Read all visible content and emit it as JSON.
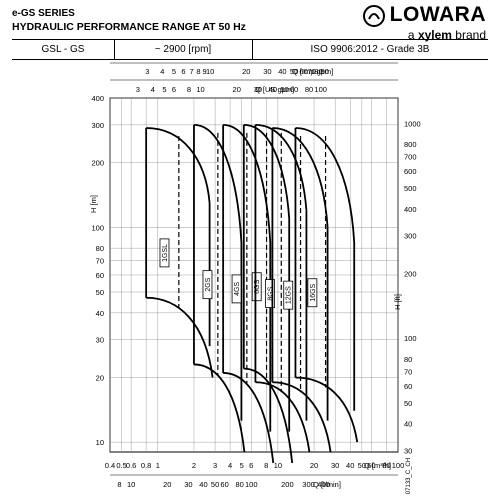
{
  "header": {
    "series": "e-GS SERIES",
    "title": "HYDRAULIC PERFORMANCE RANGE AT 50 Hz",
    "logo": "LOWARA",
    "brand_prefix": "a ",
    "brand_strong": "xylem",
    "brand_suffix": " brand"
  },
  "info": {
    "models": "GSL - GS",
    "speed": "~ 2900 [rpm]",
    "standard": "ISO 9906:2012 - Grade 3B"
  },
  "chart_data": {
    "type": "line",
    "title": "",
    "xscale": "log",
    "yscale": "log",
    "xlabel": "Q [m³/h]",
    "ylabel": "H [m]",
    "xlim": [
      0.4,
      100
    ],
    "ylim": [
      9,
      400
    ],
    "y2label": "H [ft]",
    "x2label_top1": "Q [Imp gpm]",
    "x2label_top2": "Q [US gpm]",
    "x2label_bottom": "Q [l/min]",
    "xticks": [
      "0.4",
      "0.5",
      "0.6",
      "0.8",
      "1",
      "2",
      "3",
      "4",
      "5",
      "6",
      "8",
      "10",
      "20",
      "30",
      "40",
      "50",
      "60",
      "80",
      "100"
    ],
    "yticks": [
      "10",
      "20",
      "30",
      "40",
      "50",
      "60",
      "70",
      "80",
      "100",
      "200",
      "300",
      "400"
    ],
    "y2ticks": [
      "30",
      "40",
      "50",
      "60",
      "70",
      "80",
      "100",
      "200",
      "300",
      "400",
      "500",
      "600",
      "700",
      "800",
      "1000"
    ],
    "imp_gpm_ticks": [
      "3",
      "4",
      "5",
      "6",
      "7",
      "8",
      "9",
      "10",
      "20",
      "30",
      "40",
      "50",
      "60",
      "70",
      "80",
      "90"
    ],
    "us_gpm_ticks": [
      "3",
      "4",
      "5",
      "6",
      "8",
      "10",
      "20",
      "30",
      "40",
      "50",
      "60",
      "80",
      "100"
    ],
    "lmin_ticks": [
      "8",
      "10",
      "20",
      "30",
      "40",
      "50",
      "60",
      "80",
      "100",
      "200",
      "300",
      "400"
    ],
    "series": [
      {
        "name": "1GSL",
        "qmin": 0.8,
        "qmax": 2.5,
        "hmax": 290,
        "hmin": 47,
        "hend": 20,
        "qmax_top": 2.5,
        "hbreak": 130
      },
      {
        "name": "2GS",
        "qmin": 2.0,
        "qmax": 4.6,
        "hmax": 300,
        "hmin": 23,
        "hend": 9,
        "qmax_top": 4.6,
        "hbreak": 85
      },
      {
        "name": "4GS",
        "qmin": 3.5,
        "qmax": 8.0,
        "hmax": 300,
        "hmin": 21,
        "hend": 8,
        "qmax_top": 8.0,
        "hbreak": 85
      },
      {
        "name": "6GS",
        "qmin": 5.2,
        "qmax": 11.5,
        "hmax": 300,
        "hmin": 22,
        "hend": 8,
        "qmax_top": 11.5,
        "hbreak": 110
      },
      {
        "name": "8GS",
        "qmin": 6.5,
        "qmax": 16,
        "hmax": 300,
        "hmin": 19,
        "hend": 9,
        "qmax_top": 16,
        "hbreak": 120
      },
      {
        "name": "12GS",
        "qmin": 9.0,
        "qmax": 24,
        "hmax": 290,
        "hmin": 19,
        "hend": 9,
        "qmax_top": 24,
        "hbreak": 100
      },
      {
        "name": "16GS",
        "qmin": 14,
        "qmax": 40,
        "hmax": 290,
        "hmin": 20,
        "hend": 10,
        "qmax_top": 40,
        "hbreak": 85
      }
    ]
  },
  "footer_code": "07133_C_CH"
}
